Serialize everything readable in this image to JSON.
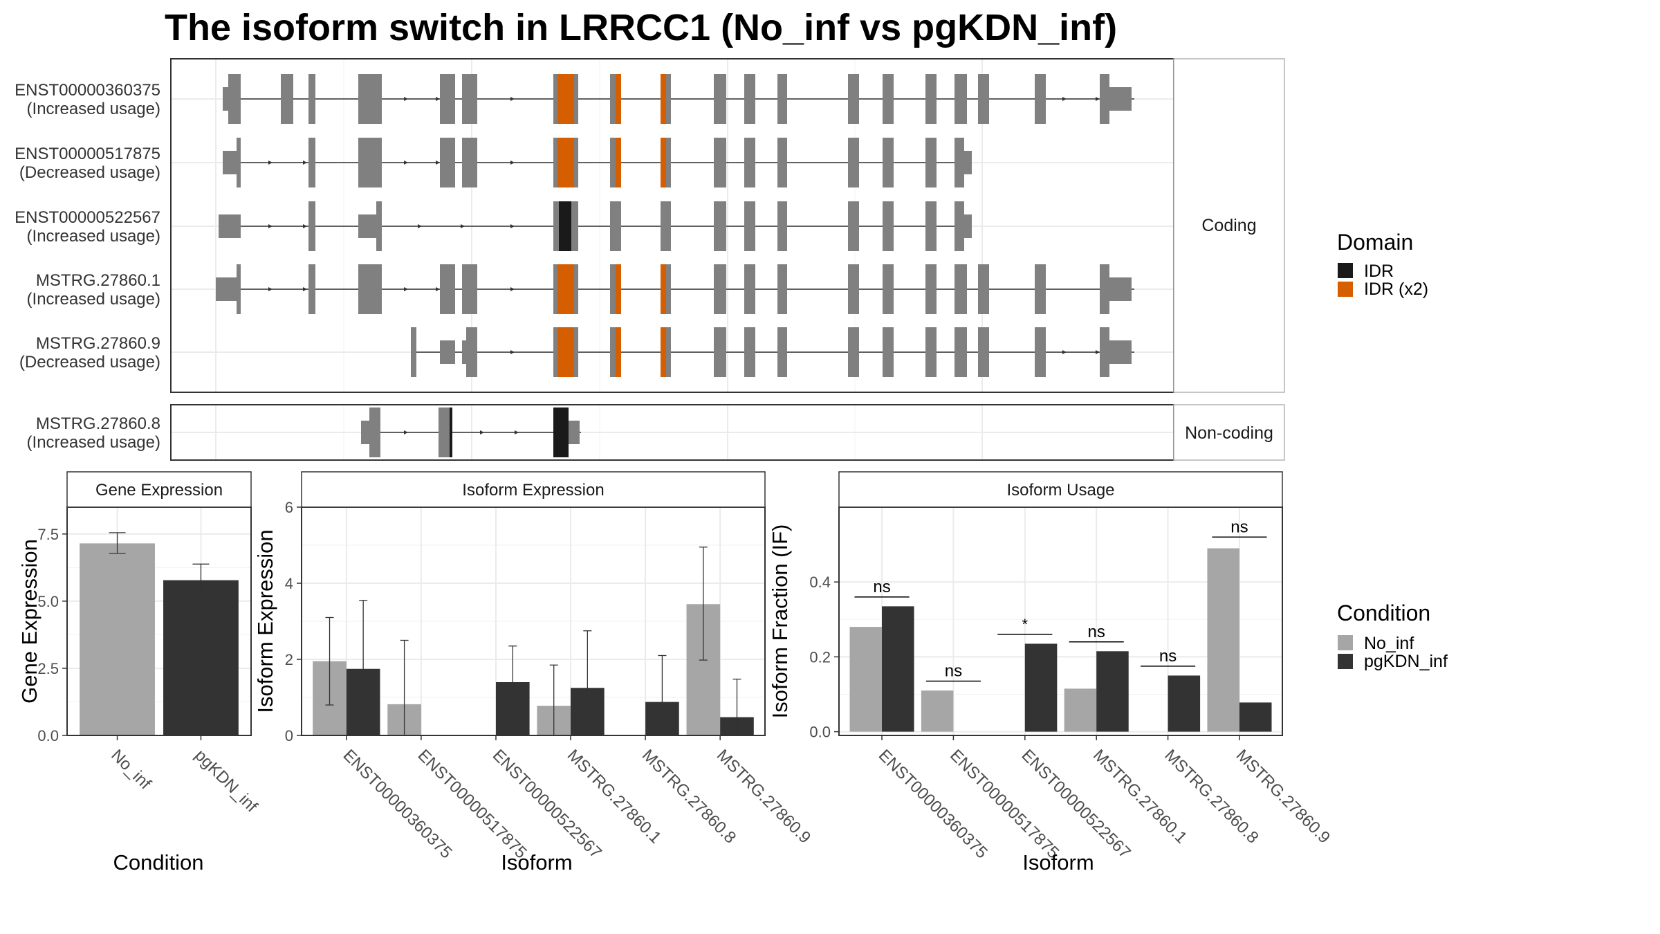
{
  "title": "The isoform switch in LRRCC1 (No_inf vs pgKDN_inf)",
  "colors": {
    "exon": "#808080",
    "idr": "#1a1a1a",
    "idr_x2": "#d55e00",
    "no_inf": "#a6a6a6",
    "pgkdn_inf": "#333333",
    "grid": "#ebebeb",
    "strip_bg": "#ffffff"
  },
  "legend": {
    "domain": {
      "title": "Domain",
      "items": [
        {
          "label": "IDR",
          "color_key": "idr"
        },
        {
          "label": "IDR (x2)",
          "color_key": "idr_x2"
        }
      ]
    },
    "condition": {
      "title": "Condition",
      "items": [
        {
          "label": "No_inf",
          "color_key": "no_inf"
        },
        {
          "label": "pgKDN_inf",
          "color_key": "pgkdn_inf"
        }
      ]
    }
  },
  "chart_data": [
    {
      "type": "gene-structure",
      "panels": [
        "Coding",
        "Non-coding"
      ],
      "tracks": [
        {
          "panel": "Coding",
          "name": "ENST00000360375",
          "note": "(Increased usage)"
        },
        {
          "panel": "Coding",
          "name": "ENST00000517875",
          "note": "(Decreased usage)"
        },
        {
          "panel": "Coding",
          "name": "ENST00000522567",
          "note": "(Increased usage)"
        },
        {
          "panel": "Coding",
          "name": "MSTRG.27860.1",
          "note": "(Increased usage)"
        },
        {
          "panel": "Coding",
          "name": "MSTRG.27860.9",
          "note": "(Decreased usage)"
        },
        {
          "panel": "Non-coding",
          "name": "MSTRG.27860.8",
          "note": "(Increased usage)"
        }
      ]
    },
    {
      "type": "bar",
      "title": "Gene Expression",
      "xlabel": "Condition",
      "ylabel": "Gene Expression",
      "ylim": [
        0,
        8.5
      ],
      "yticks": [
        0.0,
        2.5,
        5.0,
        7.5
      ],
      "ytick_labels": [
        "0.0",
        "2.5",
        "5.0",
        "7.5"
      ],
      "categories": [
        "No_inf",
        "pgKDN_inf"
      ],
      "values": [
        7.15,
        5.78
      ],
      "errors": [
        [
          6.78,
          7.55
        ],
        [
          5.18,
          6.38
        ]
      ]
    },
    {
      "type": "bar",
      "title": "Isoform Expression",
      "xlabel": "Isoform",
      "ylabel": "Isoform Expression",
      "ylim": [
        0,
        6
      ],
      "yticks": [
        0,
        2,
        4,
        6
      ],
      "ytick_labels": [
        "0",
        "2",
        "4",
        "6"
      ],
      "categories": [
        "ENST00000360375",
        "ENST00000517875",
        "ENST00000522567",
        "MSTRG.27860.1",
        "MSTRG.27860.8",
        "MSTRG.27860.9"
      ],
      "series": [
        {
          "name": "No_inf",
          "values": [
            1.95,
            0.82,
            0.0,
            0.78,
            0.0,
            3.45
          ],
          "errors": [
            [
              0.8,
              3.1
            ],
            [
              0.0,
              2.5
            ],
            [
              0.0,
              0.0
            ],
            [
              0.0,
              1.85
            ],
            [
              0.0,
              0.0
            ],
            [
              1.98,
              4.95
            ]
          ]
        },
        {
          "name": "pgKDN_inf",
          "values": [
            1.75,
            0.0,
            1.4,
            1.25,
            0.88,
            0.48
          ],
          "errors": [
            [
              0.0,
              3.55
            ],
            [
              0.0,
              0.0
            ],
            [
              0.5,
              2.35
            ],
            [
              0.0,
              2.75
            ],
            [
              0.0,
              2.1
            ],
            [
              0.0,
              1.48
            ]
          ]
        }
      ]
    },
    {
      "type": "bar",
      "title": "Isoform Usage",
      "xlabel": "Isoform",
      "ylabel": "Isoform Fraction (IF)",
      "ylim": [
        -0.01,
        0.6
      ],
      "yticks": [
        0.0,
        0.2,
        0.4
      ],
      "ytick_labels": [
        "0.0",
        "0.2",
        "0.4"
      ],
      "categories": [
        "ENST00000360375",
        "ENST00000517875",
        "ENST00000522567",
        "MSTRG.27860.1",
        "MSTRG.27860.8",
        "MSTRG.27860.9"
      ],
      "series": [
        {
          "name": "No_inf",
          "values": [
            0.28,
            0.11,
            0.0,
            0.115,
            0.0,
            0.49
          ]
        },
        {
          "name": "pgKDN_inf",
          "values": [
            0.335,
            0.0,
            0.235,
            0.215,
            0.15,
            0.078
          ]
        }
      ],
      "significance": [
        "ns",
        "ns",
        "*",
        "ns",
        "ns",
        "ns"
      ],
      "significance_y": [
        0.36,
        0.135,
        0.26,
        0.24,
        0.175,
        0.52
      ]
    }
  ]
}
